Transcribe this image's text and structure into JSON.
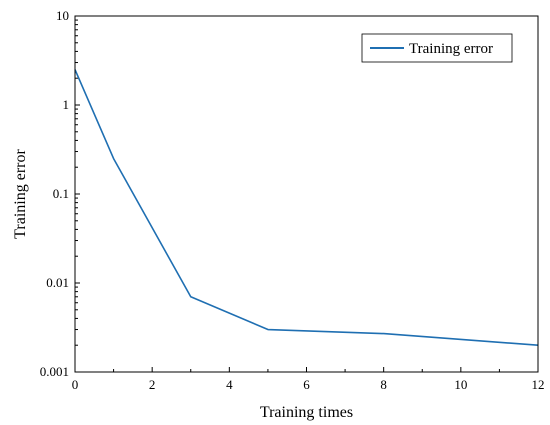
{
  "chart_data": {
    "type": "line",
    "title": "",
    "xlabel": "Training times",
    "ylabel": "Training error",
    "xlim": [
      0,
      12
    ],
    "ylim": [
      0.001,
      10
    ],
    "yscale": "log",
    "grid": false,
    "legend_position": "top-right",
    "x_ticks": [
      "0",
      "2",
      "4",
      "6",
      "8",
      "10",
      "12"
    ],
    "y_ticks": [
      "0.001",
      "0.01",
      "0.1",
      "1",
      "10"
    ],
    "series": [
      {
        "name": "Training error",
        "color": "#1f6fb2",
        "x": [
          0,
          1,
          3,
          5,
          8,
          12
        ],
        "y": [
          2.5,
          0.25,
          0.007,
          0.003,
          0.0027,
          0.002
        ]
      }
    ]
  }
}
